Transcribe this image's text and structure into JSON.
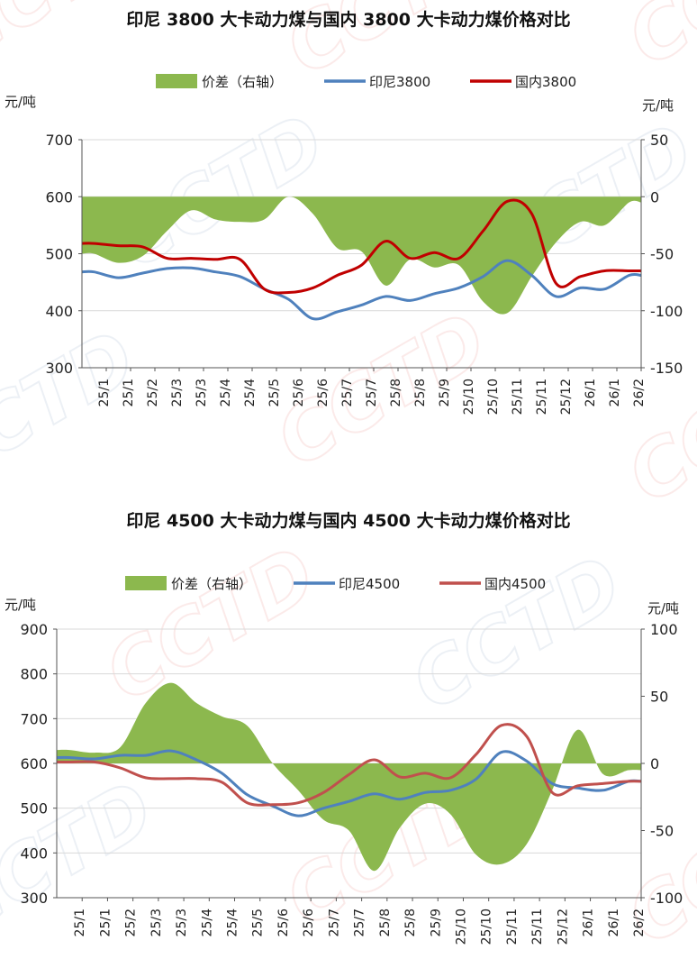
{
  "watermark": "CCTD",
  "colors": {
    "spread": "#8cb84e",
    "indonesia": "#4f81bd",
    "domestic_3800": "#c00000",
    "domestic_4500": "#c0504d"
  },
  "chart_data": [
    {
      "type": "area",
      "title": "印尼 3800 大卡动力煤与国内 3800 大卡动力煤价格对比",
      "ylabel": "元/吨",
      "y2label": "元/吨",
      "ylim": [
        300,
        700
      ],
      "yticks": [
        300,
        400,
        500,
        600,
        700
      ],
      "y2lim": [
        -150,
        50
      ],
      "y2ticks": [
        -150,
        -100,
        -50,
        0,
        50
      ],
      "categories": [
        "25/1",
        "25/1",
        "25/2",
        "25/3",
        "25/3",
        "25/4",
        "25/4",
        "25/5",
        "25/6",
        "25/6",
        "25/7",
        "25/7",
        "25/8",
        "25/8",
        "25/9",
        "25/10",
        "25/10",
        "25/11",
        "25/11",
        "25/12",
        "26/1",
        "26/1",
        "26/2"
      ],
      "legend_position": "top",
      "series": [
        {
          "name": "价差（右轴）",
          "kind": "area",
          "axis": "right",
          "values": [
            -50,
            -58,
            -52,
            -30,
            -12,
            -20,
            -22,
            -20,
            0,
            -15,
            -45,
            -48,
            -78,
            -55,
            -62,
            -60,
            -92,
            -102,
            -70,
            -40,
            -22,
            -25,
            -5
          ]
        },
        {
          "name": "印尼3800",
          "kind": "line",
          "axis": "left",
          "values": [
            468,
            458,
            466,
            474,
            475,
            468,
            460,
            438,
            420,
            386,
            398,
            410,
            425,
            418,
            430,
            440,
            460,
            488,
            462,
            425,
            440,
            438,
            462
          ]
        },
        {
          "name": "国内3800",
          "kind": "line",
          "axis": "left",
          "values": [
            518,
            514,
            512,
            492,
            492,
            490,
            490,
            438,
            432,
            440,
            462,
            480,
            522,
            492,
            502,
            492,
            540,
            592,
            570,
            448,
            460,
            470,
            470
          ]
        }
      ]
    },
    {
      "type": "area",
      "title": "印尼 4500 大卡动力煤与国内 4500 大卡动力煤价格对比",
      "ylabel": "元/吨",
      "y2label": "元/吨",
      "ylim": [
        300,
        900
      ],
      "yticks": [
        300,
        400,
        500,
        600,
        700,
        800,
        900
      ],
      "y2lim": [
        -100,
        100
      ],
      "y2ticks": [
        -100,
        -50,
        0,
        50,
        100
      ],
      "categories": [
        "25/1",
        "25/1",
        "25/2",
        "25/3",
        "25/3",
        "25/4",
        "25/4",
        "25/5",
        "25/6",
        "25/6",
        "25/7",
        "25/7",
        "25/8",
        "25/8",
        "25/9",
        "25/10",
        "25/10",
        "25/11",
        "25/11",
        "25/12",
        "26/1",
        "26/1",
        "26/2"
      ],
      "legend_position": "top",
      "series": [
        {
          "name": "价差（右轴）",
          "kind": "area",
          "axis": "right",
          "values": [
            10,
            8,
            12,
            45,
            60,
            45,
            35,
            28,
            0,
            -20,
            -42,
            -50,
            -80,
            -48,
            -30,
            -38,
            -68,
            -75,
            -60,
            -20,
            25,
            -8,
            -5
          ]
        },
        {
          "name": "印尼4500",
          "kind": "line",
          "axis": "left",
          "values": [
            613,
            610,
            618,
            618,
            628,
            608,
            578,
            530,
            505,
            483,
            500,
            515,
            532,
            520,
            535,
            540,
            565,
            625,
            605,
            555,
            545,
            540,
            560
          ]
        },
        {
          "name": "国内4500",
          "kind": "line",
          "axis": "left",
          "values": [
            603,
            603,
            590,
            568,
            566,
            566,
            558,
            512,
            508,
            512,
            535,
            575,
            608,
            570,
            578,
            568,
            620,
            685,
            660,
            535,
            550,
            555,
            560
          ]
        }
      ]
    }
  ]
}
